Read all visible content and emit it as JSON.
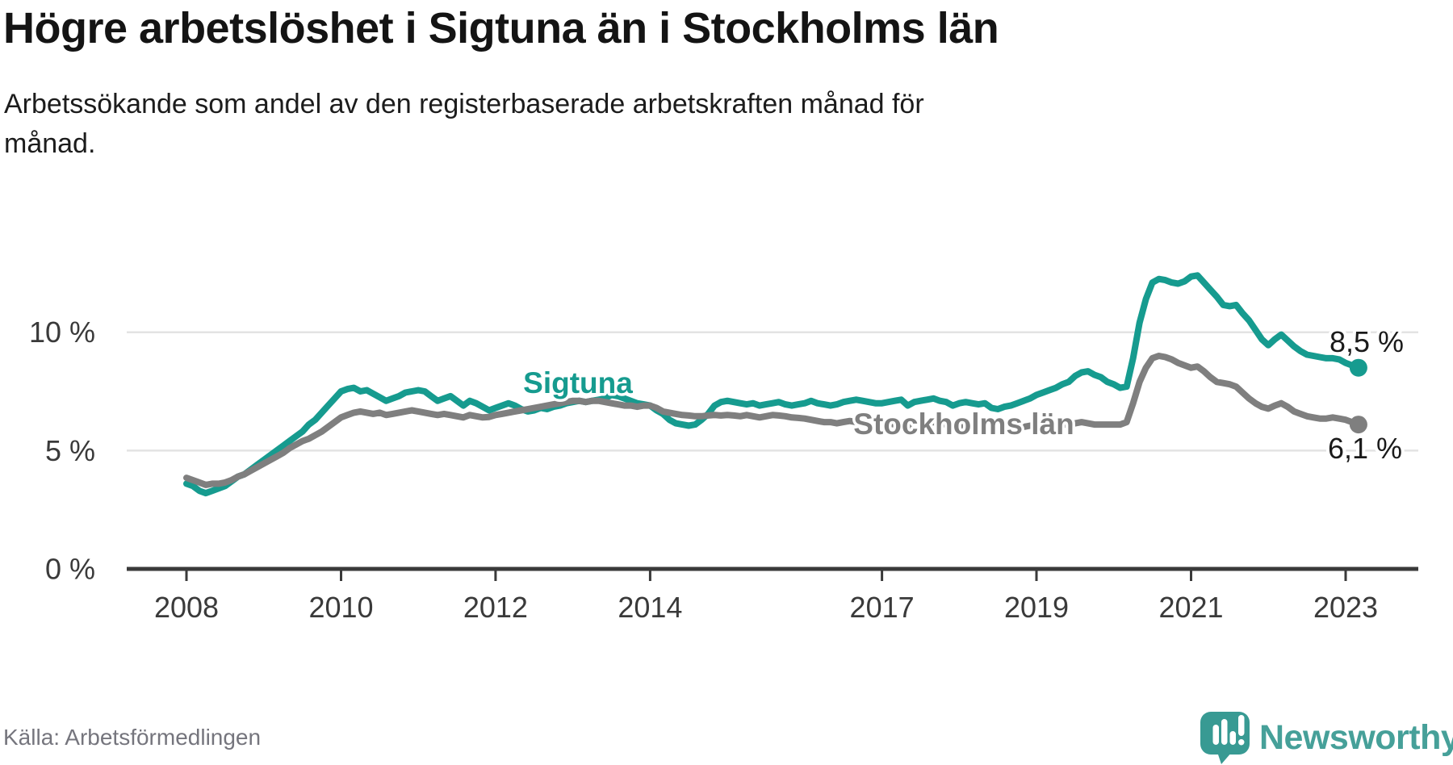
{
  "header": {
    "title": "Högre arbetslöshet i Sigtuna än i Stockholms län",
    "subtitle": "Arbetssökande som andel av den registerbaserade arbetskraften månad för månad.",
    "subtitle_lines": [
      "Arbetssökande som andel av den registerbaserade arbetskraften månad för",
      "månad."
    ]
  },
  "footer": {
    "source": "Källa: Arbetsförmedlingen",
    "brand": "Newsworthy",
    "logo_icon": "newsworthy-speech-bubble-bar-chart-icon",
    "brand_color": "#46a099"
  },
  "chart_data": {
    "type": "line",
    "title": "Högre arbetslöshet i Sigtuna än i Stockholms län",
    "x_unit": "month",
    "x_start": "2008-01",
    "x_end": "2023-03",
    "x_tick_labels": [
      "2008",
      "2010",
      "2012",
      "2014",
      "2017",
      "2019",
      "2021",
      "2023"
    ],
    "x_tick_years": [
      2008,
      2010,
      2012,
      2014,
      2017,
      2019,
      2021,
      2023
    ],
    "y_tick_labels": [
      "0 %",
      "5 %",
      "10 %"
    ],
    "y_tick_values": [
      0,
      5,
      10
    ],
    "ylim": [
      0,
      14.4
    ],
    "grid": "horizontal",
    "legend": "inline-labels",
    "series": [
      {
        "name": "Sigtuna",
        "color": "#169b8f",
        "end_label": "8,5 %",
        "end_value": 8.5,
        "values": [
          3.6,
          3.5,
          3.3,
          3.2,
          3.3,
          3.4,
          3.5,
          3.7,
          3.9,
          4.0,
          4.2,
          4.4,
          4.6,
          4.8,
          5.0,
          5.2,
          5.4,
          5.6,
          5.8,
          6.1,
          6.3,
          6.6,
          6.9,
          7.2,
          7.5,
          7.6,
          7.65,
          7.5,
          7.55,
          7.4,
          7.25,
          7.1,
          7.2,
          7.3,
          7.45,
          7.5,
          7.55,
          7.5,
          7.3,
          7.1,
          7.2,
          7.3,
          7.1,
          6.9,
          7.1,
          7.0,
          6.85,
          6.7,
          6.8,
          6.9,
          7.0,
          6.9,
          6.75,
          6.65,
          6.7,
          6.8,
          6.75,
          6.85,
          6.9,
          7.0,
          7.05,
          7.1,
          7.05,
          7.1,
          7.15,
          7.2,
          7.35,
          7.3,
          7.2,
          7.1,
          7.0,
          6.95,
          6.9,
          6.7,
          6.55,
          6.3,
          6.15,
          6.1,
          6.05,
          6.1,
          6.3,
          6.55,
          6.9,
          7.05,
          7.1,
          7.05,
          7.0,
          6.95,
          7.0,
          6.9,
          6.95,
          7.0,
          7.05,
          6.95,
          6.9,
          6.95,
          7.0,
          7.1,
          7.0,
          6.95,
          6.9,
          6.95,
          7.05,
          7.1,
          7.15,
          7.1,
          7.05,
          7.0,
          7.0,
          7.05,
          7.1,
          7.15,
          6.9,
          7.05,
          7.1,
          7.15,
          7.2,
          7.1,
          7.05,
          6.9,
          7.0,
          7.05,
          7.0,
          6.95,
          7.0,
          6.8,
          6.75,
          6.85,
          6.9,
          7.0,
          7.1,
          7.2,
          7.35,
          7.45,
          7.55,
          7.65,
          7.8,
          7.9,
          8.15,
          8.3,
          8.35,
          8.2,
          8.1,
          7.9,
          7.8,
          7.65,
          7.7,
          8.9,
          10.4,
          11.4,
          12.1,
          12.25,
          12.2,
          12.1,
          12.05,
          12.15,
          12.35,
          12.4,
          12.1,
          11.8,
          11.5,
          11.15,
          11.1,
          11.15,
          10.8,
          10.5,
          10.1,
          9.7,
          9.45,
          9.7,
          9.9,
          9.65,
          9.4,
          9.2,
          9.05,
          9.0,
          8.95,
          8.9,
          8.9,
          8.85,
          8.7,
          8.6,
          8.5
        ]
      },
      {
        "name": "Stockholms län",
        "color": "#7f7f7f",
        "end_label": "6,1 %",
        "end_value": 6.1,
        "values": [
          3.85,
          3.75,
          3.65,
          3.55,
          3.6,
          3.6,
          3.65,
          3.75,
          3.9,
          4.0,
          4.15,
          4.3,
          4.45,
          4.6,
          4.75,
          4.9,
          5.1,
          5.25,
          5.4,
          5.5,
          5.65,
          5.8,
          6.0,
          6.2,
          6.4,
          6.5,
          6.6,
          6.65,
          6.6,
          6.55,
          6.6,
          6.5,
          6.55,
          6.6,
          6.65,
          6.7,
          6.65,
          6.6,
          6.55,
          6.5,
          6.55,
          6.5,
          6.45,
          6.4,
          6.5,
          6.45,
          6.4,
          6.42,
          6.5,
          6.55,
          6.6,
          6.65,
          6.7,
          6.75,
          6.8,
          6.85,
          6.9,
          6.95,
          7.0,
          7.05,
          7.1,
          7.1,
          7.05,
          7.1,
          7.1,
          7.05,
          7.0,
          6.95,
          6.9,
          6.9,
          6.85,
          6.9,
          6.9,
          6.8,
          6.65,
          6.6,
          6.55,
          6.5,
          6.48,
          6.45,
          6.45,
          6.48,
          6.5,
          6.48,
          6.5,
          6.48,
          6.45,
          6.5,
          6.45,
          6.4,
          6.45,
          6.5,
          6.48,
          6.45,
          6.4,
          6.38,
          6.35,
          6.3,
          6.25,
          6.2,
          6.2,
          6.15,
          6.2,
          6.25,
          6.2,
          6.15,
          6.1,
          6.1,
          6.1,
          6.15,
          6.1,
          6.05,
          6.0,
          6.05,
          6.1,
          6.15,
          6.2,
          6.15,
          6.1,
          6.05,
          6.05,
          6.0,
          5.95,
          5.9,
          5.95,
          5.9,
          5.85,
          5.9,
          5.95,
          6.0,
          6.0,
          6.05,
          6.05,
          6.1,
          6.1,
          6.05,
          6.1,
          6.1,
          6.15,
          6.2,
          6.15,
          6.1,
          6.1,
          6.1,
          6.1,
          6.1,
          6.2,
          7.0,
          7.9,
          8.5,
          8.9,
          9.0,
          8.95,
          8.85,
          8.7,
          8.6,
          8.5,
          8.55,
          8.35,
          8.1,
          7.9,
          7.85,
          7.8,
          7.7,
          7.45,
          7.2,
          7.0,
          6.85,
          6.77,
          6.9,
          7.0,
          6.85,
          6.65,
          6.55,
          6.45,
          6.4,
          6.35,
          6.35,
          6.4,
          6.35,
          6.3,
          6.2,
          6.1
        ]
      }
    ]
  }
}
